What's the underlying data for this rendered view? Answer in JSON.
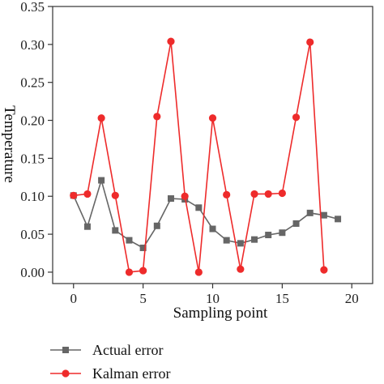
{
  "chart_data": {
    "type": "line",
    "xlabel": "Sampling point",
    "ylabel": "Temperature",
    "xlim": [
      -1.5,
      21.5
    ],
    "ylim": [
      -0.015,
      0.35
    ],
    "x_ticks": [
      0,
      5,
      10,
      15,
      20
    ],
    "y_ticks": [
      0.0,
      0.05,
      0.1,
      0.15,
      0.2,
      0.25,
      0.3,
      0.35
    ],
    "y_tick_labels": [
      "0.00",
      "0.05",
      "0.10",
      "0.15",
      "0.20",
      "0.25",
      "0.30",
      "0.35"
    ],
    "legend_position": "bottom-left",
    "series": [
      {
        "name": "Actual error",
        "color": "#666666",
        "marker": "square",
        "x": [
          0,
          1,
          2,
          3,
          4,
          5,
          6,
          7,
          8,
          9,
          10,
          11,
          12,
          13,
          14,
          15,
          16,
          17,
          18,
          19,
          20
        ],
        "values": [
          0.101,
          0.06,
          0.121,
          0.055,
          0.042,
          0.032,
          0.061,
          0.097,
          0.096,
          0.085,
          0.057,
          0.042,
          0.038,
          0.043,
          0.049,
          0.052,
          0.064,
          0.078,
          0.075,
          0.07,
          null
        ]
      },
      {
        "name": "Kalman error",
        "color": "#ee2b2b",
        "marker": "circle",
        "x": [
          0,
          1,
          2,
          3,
          4,
          5,
          6,
          7,
          8,
          9,
          10,
          11,
          12,
          13,
          14,
          15,
          16,
          17,
          18,
          19
        ],
        "values": [
          0.101,
          0.103,
          0.203,
          0.101,
          0.0,
          0.002,
          0.205,
          0.304,
          0.1,
          0.0,
          0.203,
          0.102,
          0.004,
          0.103,
          0.103,
          0.104,
          0.204,
          0.303,
          0.003,
          null
        ]
      }
    ]
  }
}
